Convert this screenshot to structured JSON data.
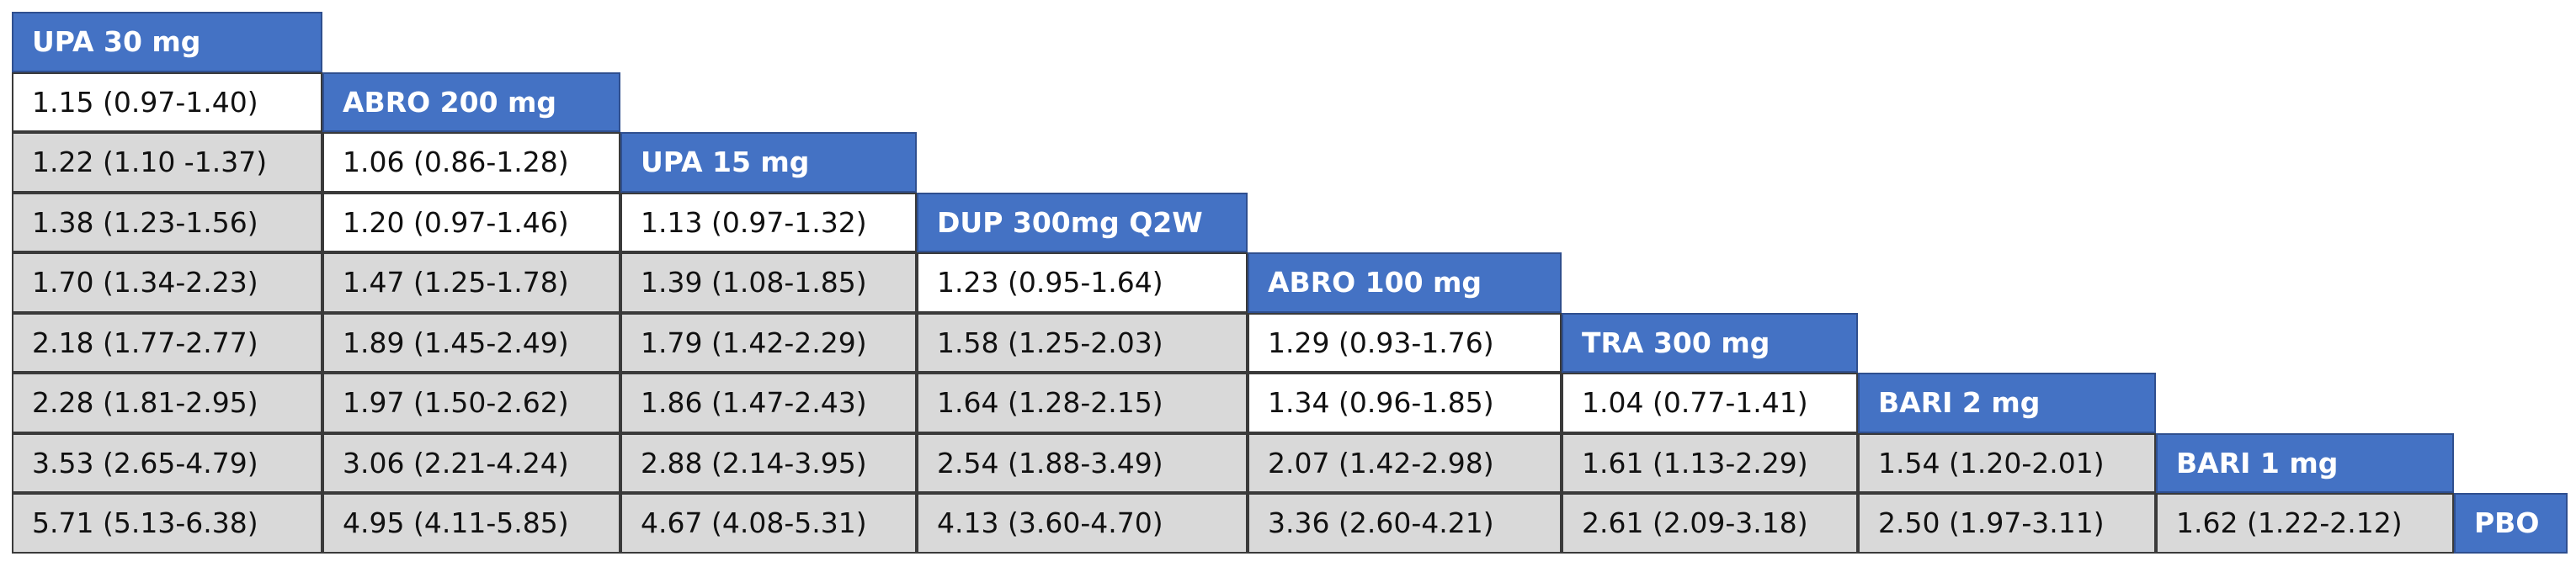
{
  "table": {
    "rows": [
      {
        "header": "UPA 30 mg",
        "cells": []
      },
      {
        "header": "ABRO 200 mg",
        "cells": [
          {
            "text": "1.15 (0.97-1.40)",
            "shaded": false
          }
        ]
      },
      {
        "header": "UPA 15 mg",
        "cells": [
          {
            "text": "1.22 (1.10 -1.37)",
            "shaded": true
          },
          {
            "text": "1.06 (0.86-1.28)",
            "shaded": false
          }
        ]
      },
      {
        "header": "DUP 300mg Q2W",
        "cells": [
          {
            "text": "1.38 (1.23-1.56)",
            "shaded": true
          },
          {
            "text": "1.20 (0.97-1.46)",
            "shaded": false
          },
          {
            "text": "1.13 (0.97-1.32)",
            "shaded": false
          }
        ]
      },
      {
        "header": "ABRO 100 mg",
        "cells": [
          {
            "text": "1.70 (1.34-2.23)",
            "shaded": true
          },
          {
            "text": "1.47 (1.25-1.78)",
            "shaded": true
          },
          {
            "text": "1.39 (1.08-1.85)",
            "shaded": true
          },
          {
            "text": "1.23 (0.95-1.64)",
            "shaded": false
          }
        ]
      },
      {
        "header": "TRA 300 mg",
        "cells": [
          {
            "text": "2.18 (1.77-2.77)",
            "shaded": true
          },
          {
            "text": "1.89 (1.45-2.49)",
            "shaded": true
          },
          {
            "text": "1.79 (1.42-2.29)",
            "shaded": true
          },
          {
            "text": "1.58 (1.25-2.03)",
            "shaded": true
          },
          {
            "text": "1.29 (0.93-1.76)",
            "shaded": false
          }
        ]
      },
      {
        "header": "BARI 2 mg",
        "cells": [
          {
            "text": "2.28 (1.81-2.95)",
            "shaded": true
          },
          {
            "text": "1.97 (1.50-2.62)",
            "shaded": true
          },
          {
            "text": "1.86 (1.47-2.43)",
            "shaded": true
          },
          {
            "text": "1.64 (1.28-2.15)",
            "shaded": true
          },
          {
            "text": "1.34 (0.96-1.85)",
            "shaded": false
          },
          {
            "text": "1.04 (0.77-1.41)",
            "shaded": false
          }
        ]
      },
      {
        "header": "BARI 1 mg",
        "cells": [
          {
            "text": "3.53 (2.65-4.79)",
            "shaded": true
          },
          {
            "text": "3.06 (2.21-4.24)",
            "shaded": true
          },
          {
            "text": "2.88 (2.14-3.95)",
            "shaded": true
          },
          {
            "text": "2.54 (1.88-3.49)",
            "shaded": true
          },
          {
            "text": "2.07 (1.42-2.98)",
            "shaded": true
          },
          {
            "text": "1.61 (1.13-2.29)",
            "shaded": true
          },
          {
            "text": "1.54 (1.20-2.01)",
            "shaded": true
          }
        ]
      },
      {
        "header": "PBO",
        "cells": [
          {
            "text": "5.71 (5.13-6.38)",
            "shaded": true
          },
          {
            "text": "4.95 (4.11-5.85)",
            "shaded": true
          },
          {
            "text": "4.67 (4.08-5.31)",
            "shaded": true
          },
          {
            "text": "4.13 (3.60-4.70)",
            "shaded": true
          },
          {
            "text": "3.36 (2.60-4.21)",
            "shaded": true
          },
          {
            "text": "2.61 (2.09-3.18)",
            "shaded": true
          },
          {
            "text": "2.50 (1.97-3.11)",
            "shaded": true
          },
          {
            "text": "1.62 (1.22-2.12)",
            "shaded": true
          }
        ]
      }
    ]
  }
}
